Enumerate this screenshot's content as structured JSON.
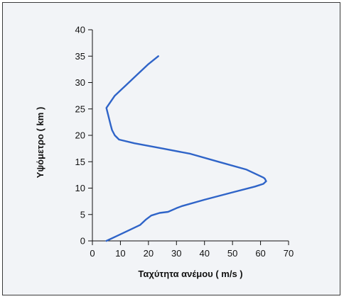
{
  "chart_data": {
    "type": "line",
    "xlabel": "Ταχύτητα ανέμου ( m/s )",
    "ylabel": "Υψόμετρο ( km )",
    "xlim": [
      0,
      70
    ],
    "ylim": [
      0,
      40
    ],
    "xticks": [
      0,
      10,
      20,
      30,
      40,
      50,
      60,
      70
    ],
    "yticks": [
      0,
      5,
      10,
      15,
      20,
      25,
      30,
      35,
      40
    ],
    "grid": false,
    "line_color": "#2f64c8",
    "series": [
      {
        "x": [
          5,
          9,
          13,
          17,
          19,
          21,
          24,
          27,
          30,
          32,
          40,
          50,
          58,
          61,
          62,
          61.5,
          61,
          55,
          45,
          35,
          25,
          15,
          9.5,
          8,
          7,
          6.5,
          5,
          8,
          12,
          16,
          20,
          23.5
        ],
        "y": [
          0,
          1,
          2,
          3,
          4,
          4.8,
          5.3,
          5.5,
          6.2,
          6.6,
          7.8,
          9.2,
          10.3,
          10.8,
          11.3,
          11.8,
          12,
          13.5,
          15,
          16.5,
          17.5,
          18.5,
          19.2,
          20,
          21,
          22,
          25.2,
          27.5,
          29.5,
          31.5,
          33.5,
          35
        ]
      }
    ]
  }
}
